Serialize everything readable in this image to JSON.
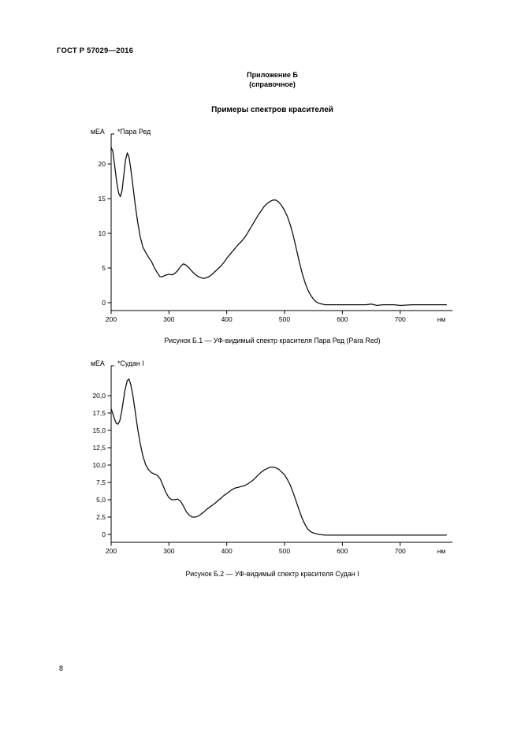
{
  "page": {
    "header": "ГОСТ Р 57029—2016",
    "appendix_title": "Приложение Б",
    "appendix_subtitle": "(справочное)",
    "section_title": "Примеры спектров красителей",
    "page_number": "8"
  },
  "chart_data": [
    {
      "type": "line",
      "title": "Рисунок Б.1 — УФ-видимый спектр красителя Пара Ред (Para Red)",
      "series_label": "*Пара Ред",
      "ylabel": "мЕА",
      "x_unit": "нм",
      "xlim": [
        200,
        790
      ],
      "ylim": [
        -1.2,
        24.3
      ],
      "grid": false,
      "x_ticks": [
        {
          "v": 200,
          "label": "200"
        },
        {
          "v": 300,
          "label": "300"
        },
        {
          "v": 400,
          "label": "400"
        },
        {
          "v": 500,
          "label": "500"
        },
        {
          "v": 600,
          "label": "600"
        },
        {
          "v": 700,
          "label": "700"
        }
      ],
      "y_ticks": [
        {
          "v": 0,
          "label": "0"
        },
        {
          "v": 5,
          "label": "5"
        },
        {
          "v": 10,
          "label": "10"
        },
        {
          "v": 15,
          "label": "15"
        },
        {
          "v": 20,
          "label": "20"
        }
      ],
      "points": [
        [
          200,
          22.4
        ],
        [
          203,
          21.8
        ],
        [
          206,
          19.8
        ],
        [
          210,
          17.2
        ],
        [
          213,
          15.8
        ],
        [
          216,
          15.3
        ],
        [
          219,
          16.2
        ],
        [
          222,
          18.4
        ],
        [
          225,
          20.6
        ],
        [
          228,
          21.6
        ],
        [
          231,
          21.0
        ],
        [
          234,
          19.3
        ],
        [
          238,
          16.6
        ],
        [
          242,
          13.9
        ],
        [
          246,
          11.6
        ],
        [
          250,
          9.6
        ],
        [
          255,
          8.0
        ],
        [
          260,
          7.2
        ],
        [
          265,
          6.5
        ],
        [
          270,
          5.9
        ],
        [
          275,
          5.0
        ],
        [
          280,
          4.3
        ],
        [
          284,
          3.8
        ],
        [
          288,
          3.7
        ],
        [
          292,
          3.9
        ],
        [
          296,
          4.0
        ],
        [
          300,
          4.1
        ],
        [
          305,
          4.0
        ],
        [
          310,
          4.2
        ],
        [
          315,
          4.6
        ],
        [
          320,
          5.2
        ],
        [
          325,
          5.6
        ],
        [
          330,
          5.4
        ],
        [
          335,
          5.0
        ],
        [
          340,
          4.5
        ],
        [
          345,
          4.1
        ],
        [
          350,
          3.8
        ],
        [
          355,
          3.6
        ],
        [
          360,
          3.5
        ],
        [
          365,
          3.6
        ],
        [
          370,
          3.8
        ],
        [
          375,
          4.1
        ],
        [
          380,
          4.5
        ],
        [
          385,
          4.9
        ],
        [
          390,
          5.3
        ],
        [
          395,
          5.8
        ],
        [
          400,
          6.4
        ],
        [
          405,
          6.9
        ],
        [
          410,
          7.4
        ],
        [
          415,
          7.9
        ],
        [
          420,
          8.4
        ],
        [
          425,
          8.8
        ],
        [
          430,
          9.3
        ],
        [
          435,
          9.9
        ],
        [
          440,
          10.6
        ],
        [
          445,
          11.3
        ],
        [
          450,
          12.0
        ],
        [
          455,
          12.7
        ],
        [
          460,
          13.3
        ],
        [
          465,
          13.9
        ],
        [
          470,
          14.3
        ],
        [
          475,
          14.6
        ],
        [
          480,
          14.8
        ],
        [
          485,
          14.8
        ],
        [
          490,
          14.5
        ],
        [
          495,
          14.0
        ],
        [
          500,
          13.3
        ],
        [
          505,
          12.4
        ],
        [
          510,
          11.2
        ],
        [
          515,
          9.7
        ],
        [
          520,
          7.9
        ],
        [
          525,
          6.1
        ],
        [
          530,
          4.4
        ],
        [
          535,
          3.0
        ],
        [
          540,
          1.9
        ],
        [
          545,
          1.1
        ],
        [
          550,
          0.5
        ],
        [
          555,
          0.1
        ],
        [
          560,
          -0.1
        ],
        [
          570,
          -0.3
        ],
        [
          580,
          -0.3
        ],
        [
          600,
          -0.3
        ],
        [
          620,
          -0.3
        ],
        [
          640,
          -0.3
        ],
        [
          650,
          -0.2
        ],
        [
          660,
          -0.4
        ],
        [
          670,
          -0.3
        ],
        [
          690,
          -0.3
        ],
        [
          700,
          -0.4
        ],
        [
          720,
          -0.3
        ],
        [
          740,
          -0.3
        ],
        [
          760,
          -0.3
        ],
        [
          780,
          -0.3
        ]
      ]
    },
    {
      "type": "line",
      "title": "Рисунок Б.2 — УФ-видимый спектр красителя Судан I",
      "series_label": "*Судан I",
      "ylabel": "мЕА",
      "x_unit": "нм",
      "xlim": [
        200,
        790
      ],
      "ylim": [
        -1.2,
        24.3
      ],
      "grid": false,
      "x_ticks": [
        {
          "v": 200,
          "label": "200"
        },
        {
          "v": 300,
          "label": "300"
        },
        {
          "v": 400,
          "label": "400"
        },
        {
          "v": 500,
          "label": "500"
        },
        {
          "v": 600,
          "label": "600"
        },
        {
          "v": 700,
          "label": "700"
        }
      ],
      "y_ticks": [
        {
          "v": 0,
          "label": "0"
        },
        {
          "v": 2.5,
          "label": "2,5"
        },
        {
          "v": 5,
          "label": "5,0"
        },
        {
          "v": 7.5,
          "label": "7,5"
        },
        {
          "v": 10,
          "label": "10,0"
        },
        {
          "v": 12.5,
          "label": "12,5"
        },
        {
          "v": 15,
          "label": "15,0"
        },
        {
          "v": 17.5,
          "label": "17,5"
        },
        {
          "v": 20,
          "label": "20,0"
        }
      ],
      "points": [
        [
          200,
          18.1
        ],
        [
          203,
          17.4
        ],
        [
          206,
          16.6
        ],
        [
          209,
          16.0
        ],
        [
          212,
          15.9
        ],
        [
          215,
          16.4
        ],
        [
          218,
          17.6
        ],
        [
          221,
          19.2
        ],
        [
          224,
          20.8
        ],
        [
          228,
          22.2
        ],
        [
          231,
          22.4
        ],
        [
          234,
          21.6
        ],
        [
          238,
          19.8
        ],
        [
          242,
          17.5
        ],
        [
          246,
          15.2
        ],
        [
          250,
          13.2
        ],
        [
          255,
          11.3
        ],
        [
          260,
          10.0
        ],
        [
          265,
          9.3
        ],
        [
          270,
          8.9
        ],
        [
          275,
          8.7
        ],
        [
          280,
          8.5
        ],
        [
          285,
          8.0
        ],
        [
          290,
          7.0
        ],
        [
          295,
          6.0
        ],
        [
          300,
          5.3
        ],
        [
          305,
          5.0
        ],
        [
          310,
          5.0
        ],
        [
          315,
          5.1
        ],
        [
          320,
          4.8
        ],
        [
          325,
          4.1
        ],
        [
          330,
          3.3
        ],
        [
          335,
          2.8
        ],
        [
          340,
          2.5
        ],
        [
          345,
          2.5
        ],
        [
          350,
          2.6
        ],
        [
          355,
          2.9
        ],
        [
          360,
          3.2
        ],
        [
          365,
          3.6
        ],
        [
          370,
          3.9
        ],
        [
          375,
          4.2
        ],
        [
          380,
          4.5
        ],
        [
          385,
          4.9
        ],
        [
          390,
          5.2
        ],
        [
          395,
          5.6
        ],
        [
          400,
          5.9
        ],
        [
          405,
          6.2
        ],
        [
          410,
          6.5
        ],
        [
          415,
          6.7
        ],
        [
          420,
          6.8
        ],
        [
          425,
          6.9
        ],
        [
          430,
          7.0
        ],
        [
          435,
          7.2
        ],
        [
          440,
          7.5
        ],
        [
          445,
          7.8
        ],
        [
          450,
          8.2
        ],
        [
          455,
          8.6
        ],
        [
          460,
          9.0
        ],
        [
          465,
          9.3
        ],
        [
          470,
          9.5
        ],
        [
          475,
          9.7
        ],
        [
          480,
          9.7
        ],
        [
          485,
          9.6
        ],
        [
          490,
          9.4
        ],
        [
          495,
          9.0
        ],
        [
          500,
          8.6
        ],
        [
          505,
          7.9
        ],
        [
          510,
          7.1
        ],
        [
          515,
          6.0
        ],
        [
          520,
          4.8
        ],
        [
          525,
          3.6
        ],
        [
          530,
          2.4
        ],
        [
          535,
          1.5
        ],
        [
          540,
          0.8
        ],
        [
          545,
          0.4
        ],
        [
          550,
          0.2
        ],
        [
          555,
          0.1
        ],
        [
          560,
          0.0
        ],
        [
          570,
          -0.1
        ],
        [
          580,
          -0.1
        ],
        [
          600,
          -0.1
        ],
        [
          620,
          -0.1
        ],
        [
          640,
          -0.1
        ],
        [
          660,
          -0.1
        ],
        [
          680,
          -0.1
        ],
        [
          700,
          -0.1
        ],
        [
          720,
          -0.1
        ],
        [
          740,
          -0.1
        ],
        [
          760,
          -0.1
        ],
        [
          780,
          -0.1
        ]
      ]
    }
  ]
}
